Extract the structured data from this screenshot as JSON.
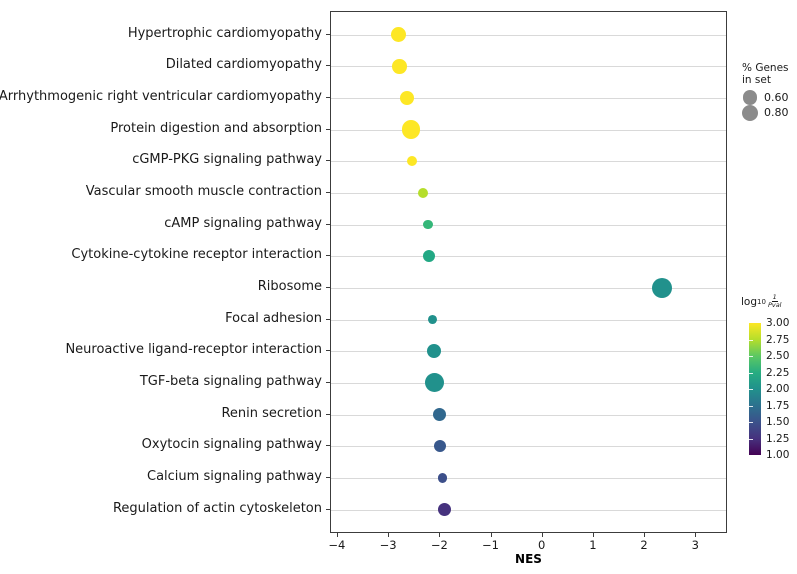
{
  "chart_data": {
    "type": "scatter",
    "title": "",
    "xlabel": "NES",
    "ylabel": "",
    "xlim": [
      -4.135,
      3.62
    ],
    "x_tick_values": [
      -4,
      -3,
      -2,
      -1,
      0,
      1,
      2,
      3
    ],
    "x_ticks": [
      "−4",
      "−3",
      "−2",
      "−1",
      "0",
      "1",
      "2",
      "3"
    ],
    "grid": "horizontal",
    "legend_position": "right",
    "categories": [
      "Hypertrophic cardiomyopathy",
      "Dilated cardiomyopathy",
      "Arrhythmogenic right ventricular cardiomyopathy",
      "Protein digestion and absorption",
      "cGMP-PKG signaling pathway",
      "Vascular smooth muscle contraction",
      "cAMP signaling pathway",
      "Cytokine-cytokine receptor interaction",
      "Ribosome",
      "Focal adhesion",
      "Neuroactive ligand-receptor interaction",
      "TGF-beta signaling pathway",
      "Renin secretion",
      "Oxytocin signaling pathway",
      "Calcium signaling pathway",
      "Regulation of actin cytoskeleton"
    ],
    "points": [
      {
        "label": "Hypertrophic cardiomyopathy",
        "nes": -2.81,
        "pct_genes_in_set": 0.65,
        "log10_inv_pval": 3.0,
        "color": "#fde725"
      },
      {
        "label": "Dilated cardiomyopathy",
        "nes": -2.79,
        "pct_genes_in_set": 0.6,
        "log10_inv_pval": 3.0,
        "color": "#fde725"
      },
      {
        "label": "Arrhythmogenic right ventricular cardiomyopathy",
        "nes": -2.65,
        "pct_genes_in_set": 0.6,
        "log10_inv_pval": 3.0,
        "color": "#fde725"
      },
      {
        "label": "Protein digestion and absorption",
        "nes": -2.57,
        "pct_genes_in_set": 0.95,
        "log10_inv_pval": 3.0,
        "color": "#fde725"
      },
      {
        "label": "cGMP-PKG signaling pathway",
        "nes": -2.55,
        "pct_genes_in_set": 0.28,
        "log10_inv_pval": 3.0,
        "color": "#fde725"
      },
      {
        "label": "Vascular smooth muscle contraction",
        "nes": -2.34,
        "pct_genes_in_set": 0.28,
        "log10_inv_pval": 2.75,
        "color": "#b5de2b"
      },
      {
        "label": "cAMP signaling pathway",
        "nes": -2.24,
        "pct_genes_in_set": 0.24,
        "log10_inv_pval": 2.3,
        "color": "#35b779"
      },
      {
        "label": "Cytokine-cytokine receptor interaction",
        "nes": -2.22,
        "pct_genes_in_set": 0.4,
        "log10_inv_pval": 2.2,
        "color": "#22a884"
      },
      {
        "label": "Ribosome",
        "nes": 2.33,
        "pct_genes_in_set": 1.18,
        "log10_inv_pval": 2.0,
        "color": "#21918c"
      },
      {
        "label": "Focal adhesion",
        "nes": -2.16,
        "pct_genes_in_set": 0.22,
        "log10_inv_pval": 2.0,
        "color": "#21918c"
      },
      {
        "label": "Neuroactive ligand-receptor interaction",
        "nes": -2.13,
        "pct_genes_in_set": 0.55,
        "log10_inv_pval": 2.0,
        "color": "#21918c"
      },
      {
        "label": "TGF-beta signaling pathway",
        "nes": -2.11,
        "pct_genes_in_set": 1.0,
        "log10_inv_pval": 2.0,
        "color": "#21918c"
      },
      {
        "label": "Renin secretion",
        "nes": -2.02,
        "pct_genes_in_set": 0.49,
        "log10_inv_pval": 1.7,
        "color": "#31688e"
      },
      {
        "label": "Oxytocin signaling pathway",
        "nes": -2.0,
        "pct_genes_in_set": 0.4,
        "log10_inv_pval": 1.55,
        "color": "#38588c"
      },
      {
        "label": "Calcium signaling pathway",
        "nes": -1.96,
        "pct_genes_in_set": 0.26,
        "log10_inv_pval": 1.45,
        "color": "#3c4f8a"
      },
      {
        "label": "Regulation of actin cytoskeleton",
        "nes": -1.91,
        "pct_genes_in_set": 0.47,
        "log10_inv_pval": 1.25,
        "color": "#46327e"
      }
    ],
    "size_legend": {
      "title_line1": "% Genes",
      "title_line2": "in set",
      "swatch_color": "#8b8b8b",
      "items": [
        {
          "label": "0.60",
          "value": 0.6
        },
        {
          "label": "0.80",
          "value": 0.8
        }
      ]
    },
    "color_legend": {
      "title_log": "log",
      "title_sub": "10",
      "title_frac_num": "1",
      "title_frac_den": "Pval",
      "colormap": "viridis",
      "range": [
        1.0,
        3.0
      ],
      "ticks": [
        "3.00",
        "2.75",
        "2.50",
        "2.25",
        "2.00",
        "1.75",
        "1.50",
        "1.25",
        "1.00"
      ],
      "tick_values": [
        3.0,
        2.75,
        2.5,
        2.25,
        2.0,
        1.75,
        1.5,
        1.25,
        1.0
      ]
    }
  },
  "colors": {
    "background": "#ffffff",
    "gridline": "#d9d9d9",
    "spine": "#3c3c3c",
    "text": "#1a1a1a"
  }
}
